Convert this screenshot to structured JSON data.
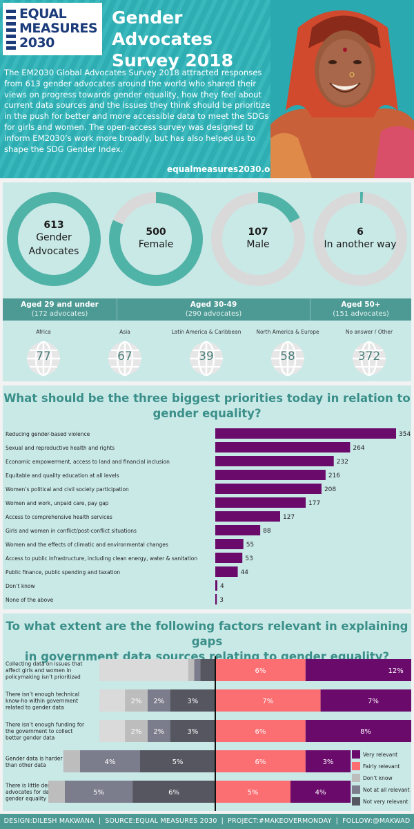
{
  "header": {
    "logo_lines": [
      "EQUAL",
      "MEASURES",
      "2030"
    ],
    "title_lines": [
      "Gender Advocates",
      "Survey 2018"
    ],
    "intro": "The EM2030 Global Advocates Survey 2018 attracted responses from 613 gender advocates around the world who shared their views on progress towards gender equality, how they feel about current data sources and the issues they think should be prioritized in the push for better and more accessible data to meet the SDGs for girls and women. The open-access survey was designed to inform EM2030’s work more broadly, but has also helped us to shape the SDG Gender Index.",
    "url": "equalmeasures2030.org"
  },
  "colors": {
    "teal": "#4fb3a8",
    "teal_dark": "#4d9a94",
    "grey": "#d9d9d9",
    "purple": "#6a0a6b",
    "salmon": "#fb6f73",
    "header_bg": "#2fb4b9",
    "panel_bg": "#c9e9e7"
  },
  "donuts": [
    {
      "number": "613",
      "label_lines": [
        "Gender",
        "Advocates"
      ],
      "fraction": 1.0
    },
    {
      "number": "500",
      "label_lines": [
        "Female"
      ],
      "fraction": 0.816
    },
    {
      "number": "107",
      "label_lines": [
        "Male"
      ],
      "fraction": 0.175
    },
    {
      "number": "6",
      "label_lines": [
        "In another way"
      ],
      "fraction": 0.01
    }
  ],
  "age_groups": [
    {
      "label": "Aged 29 and under",
      "count": "(172 advocates)"
    },
    {
      "label": "Aged 30-49",
      "count": "(290 advocates)"
    },
    {
      "label": "Aged 50+",
      "count": "(151 advocates)"
    }
  ],
  "regions": [
    {
      "name": "Africa",
      "value": "77"
    },
    {
      "name": "Asia",
      "value": "67"
    },
    {
      "name": "Latin America & Caribbean",
      "value": "39"
    },
    {
      "name": "North America & Europe",
      "value": "58"
    },
    {
      "name": "No answer / Other",
      "value": "372"
    }
  ],
  "priorities_title_lines": [
    "What should be the three biggest priorities today in relation to",
    "gender equality?"
  ],
  "factors_title_lines": [
    "To what extent are the following factors relevant in explaining gaps",
    "in government data sources relating to gender equality?"
  ],
  "chart_data": [
    {
      "type": "bar",
      "orientation": "horizontal",
      "title": "What should be the three biggest priorities today in relation to gender equality?",
      "categories": [
        "Reducing gender-based violence",
        "Sexual and reproductive health and rights",
        "Economic empowerment, access to land and financial inclusion",
        "Equitable and quality education at all levels",
        "Women’s political and civil society participation",
        "Women and work, unpaid care, pay gap",
        "Access to comprehensive health services",
        "Girls and women in conflict/post-conflict situations",
        "Women and the effects of climatic and environmental changes",
        "Access to public infrastructure, including clean energy, water & sanitation",
        "Public finance, public spending and taxation",
        "Don’t know",
        "None of the above"
      ],
      "values": [
        354,
        264,
        232,
        216,
        208,
        177,
        127,
        88,
        55,
        53,
        44,
        4,
        3
      ],
      "value_labels": [
        "354",
        "264",
        "232",
        "216",
        "208",
        "177",
        "127",
        "88",
        "55",
        "53",
        "44",
        "4",
        "3"
      ],
      "color": "#6a0a6b",
      "xlim": [
        0,
        354
      ],
      "grid": false
    },
    {
      "type": "bar",
      "orientation": "horizontal",
      "stacked": "diverging",
      "title": "To what extent are the following factors relevant in explaining gaps in government data sources relating to gender equality?",
      "categories": [
        [
          "Collecting data on issues that",
          "affect girls and women in",
          "policymaking isn’t prioritized"
        ],
        [
          "There isn’t enough technical",
          "know-ho within government",
          "related to gender data"
        ],
        [
          "There isn’t enough funding for",
          "the government to collect",
          "better gender data"
        ],
        [
          "Gender data is harder to collect",
          "than other data"
        ],
        [
          "There is little demand from",
          "advocates for data relating to",
          "gender equality"
        ]
      ],
      "series": [
        {
          "name": "Very relevant",
          "side": "right",
          "color": "#6a0a6b",
          "values": [
            12,
            7,
            8,
            3,
            4
          ],
          "labels": [
            "12%",
            "7%",
            "8%",
            "3%",
            "4%"
          ]
        },
        {
          "name": "Fairly relevant",
          "side": "right",
          "color": "#fb6f73",
          "values": [
            6,
            7,
            6,
            6,
            5
          ],
          "labels": [
            "6%",
            "7%",
            "6%",
            "6%",
            "5%"
          ]
        },
        {
          "name": "Don’t know",
          "side": "left",
          "color": "#bdbdbd",
          "values": [
            0.4,
            1.5,
            1.5,
            1.1,
            1.1
          ],
          "labels": [
            "",
            "2%",
            "2%",
            "",
            ""
          ]
        },
        {
          "name": "Not at all relevant",
          "side": "left",
          "color": "#7c7d8c",
          "values": [
            0.4,
            1.5,
            1.5,
            4,
            4.5
          ],
          "labels": [
            "",
            "2%",
            "2%",
            "4%",
            "5%"
          ]
        },
        {
          "name": "Not very relevant",
          "side": "left",
          "color": "#55565f",
          "values": [
            1,
            3,
            3,
            5,
            5.5
          ],
          "labels": [
            "",
            "3%",
            "3%",
            "5%",
            "6%"
          ]
        }
      ],
      "legend": "bottom-right"
    }
  ],
  "footer": {
    "items": [
      "DESIGN:DILESH MAKWANA",
      "SOURCE:EQUAL MEASURES 2030",
      "PROJECT:#MAKEOVERMONDAY",
      "FOLLOW:@MAKWAD"
    ],
    "separator": "|"
  }
}
